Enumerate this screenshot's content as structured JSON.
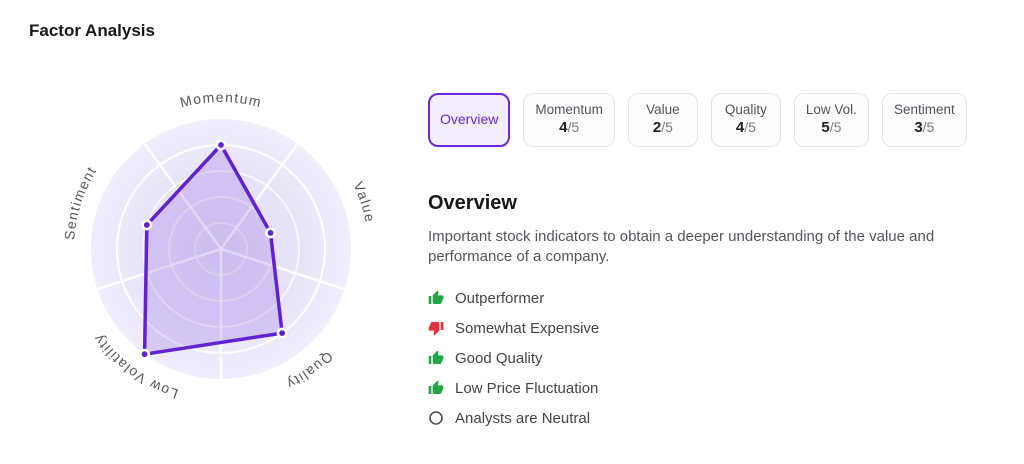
{
  "page": {
    "title": "Factor Analysis"
  },
  "tabs": [
    {
      "id": "overview",
      "label": "Overview",
      "active": true
    },
    {
      "id": "momentum",
      "label": "Momentum",
      "score": "4",
      "max": "/5",
      "active": false
    },
    {
      "id": "value",
      "label": "Value",
      "score": "2",
      "max": "/5",
      "active": false
    },
    {
      "id": "quality",
      "label": "Quality",
      "score": "4",
      "max": "/5",
      "active": false
    },
    {
      "id": "low-vol",
      "label": "Low Vol.",
      "score": "5",
      "max": "/5",
      "active": false
    },
    {
      "id": "sentiment",
      "label": "Sentiment",
      "score": "3",
      "max": "/5",
      "active": false
    }
  ],
  "overview": {
    "heading": "Overview",
    "description": "Important stock indicators to obtain a deeper understanding of the value and performance of a company."
  },
  "indicators": [
    {
      "icon": "thumb-up-icon",
      "sentiment": "positive",
      "label": "Outperformer"
    },
    {
      "icon": "thumb-down-icon",
      "sentiment": "negative",
      "label": "Somewhat Expensive"
    },
    {
      "icon": "thumb-up-icon",
      "sentiment": "positive",
      "label": "Good Quality"
    },
    {
      "icon": "thumb-up-icon",
      "sentiment": "positive",
      "label": "Low Price Fluctuation"
    },
    {
      "icon": "neutral-circle-icon",
      "sentiment": "neutral",
      "label": "Analysts are Neutral"
    }
  ],
  "colors": {
    "accent_purple": "#6d28d9",
    "radar_stroke": "#6222d3",
    "radar_fill": "rgba(98,34,211,0.17)",
    "radar_label": "#58585e",
    "disc_inner": "#e2def6",
    "disc_mid": "#e7e3f8",
    "disc_edge": "#efeefc",
    "positive_green": "#22a447",
    "negative_red": "#e23440",
    "neutral_gray": "#4f4f55"
  },
  "chart_data": {
    "type": "radar",
    "axes": [
      "Momentum",
      "Value",
      "Quality",
      "Low Volatility",
      "Sentiment"
    ],
    "values": [
      4,
      2,
      4,
      5,
      3
    ],
    "max": 5,
    "rings": 5,
    "legend": "none",
    "grid": "concentric-circles-with-sector-spokes"
  }
}
